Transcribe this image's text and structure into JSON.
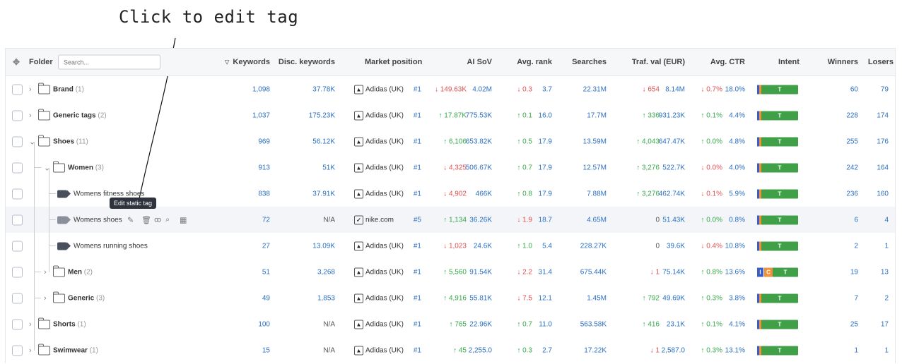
{
  "annotation": {
    "text": "Click to edit tag"
  },
  "header": {
    "sort_icon": "sort-asc-icon",
    "folder_label": "Folder",
    "search_placeholder": "Search...",
    "columns": [
      "Keywords",
      "Disc. keywords",
      "Market position",
      "AI SoV",
      "Avg. rank",
      "Searches",
      "Traf. val (EUR)",
      "Avg. CTR",
      "Intent",
      "Winners",
      "Losers"
    ]
  },
  "tooltip": {
    "text": "Edit static tag"
  },
  "colors": {
    "up": "#38a84c",
    "down": "#e05050",
    "link": "#2a6fc2",
    "intent_green": "#3fa048",
    "intent_blue": "#3a5cc7",
    "intent_orange": "#f0913a"
  },
  "rows": [
    {
      "name": "Brand",
      "count": "(1)",
      "keywords": "1,098",
      "disc": "37.78K",
      "brand": "Adidas (UK)",
      "pos": "#1",
      "sov_d": "149.63K",
      "sov_dir": "down",
      "sov": "4.02M",
      "rank_d": "0.3",
      "rank_dir": "down",
      "rank": "3.7",
      "searches": "22.31M",
      "tv_d": "654",
      "tv_dir": "down",
      "tv": "8.14M",
      "ctr_d": "0.7%",
      "ctr_dir": "down",
      "ctr": "18.0%",
      "intent": "T",
      "winners": "60",
      "losers": "79"
    },
    {
      "name": "Generic tags",
      "count": "(2)",
      "keywords": "1,037",
      "disc": "175.23K",
      "brand": "Adidas (UK)",
      "pos": "#1",
      "sov_d": "17.87K",
      "sov_dir": "up",
      "sov": "775.53K",
      "rank_d": "0.1",
      "rank_dir": "up",
      "rank": "16.0",
      "searches": "17.7M",
      "tv_d": "336",
      "tv_dir": "up",
      "tv": "931.23K",
      "ctr_d": "0.1%",
      "ctr_dir": "up",
      "ctr": "4.4%",
      "intent": "T",
      "winners": "228",
      "losers": "174"
    },
    {
      "name": "Shoes",
      "count": "(11)",
      "keywords": "969",
      "disc": "56.12K",
      "brand": "Adidas (UK)",
      "pos": "#1",
      "sov_d": "6,106",
      "sov_dir": "up",
      "sov": "653.82K",
      "rank_d": "0.5",
      "rank_dir": "up",
      "rank": "17.9",
      "searches": "13.59M",
      "tv_d": "4,043",
      "tv_dir": "up",
      "tv": "647.47K",
      "ctr_d": "0.0%",
      "ctr_dir": "up",
      "ctr": "4.8%",
      "intent": "T",
      "winners": "255",
      "losers": "176"
    },
    {
      "name": "Women",
      "count": "(3)",
      "keywords": "913",
      "disc": "51K",
      "brand": "Adidas (UK)",
      "pos": "#1",
      "sov_d": "4,325",
      "sov_dir": "down",
      "sov": "506.67K",
      "rank_d": "0.7",
      "rank_dir": "up",
      "rank": "17.9",
      "searches": "12.57M",
      "tv_d": "3,276",
      "tv_dir": "up",
      "tv": "522.7K",
      "ctr_d": "0.0%",
      "ctr_dir": "down",
      "ctr": "4.0%",
      "intent": "T",
      "winners": "242",
      "losers": "164"
    },
    {
      "name": "Womens fitness shoes",
      "count": "",
      "keywords": "838",
      "disc": "37.91K",
      "brand": "Adidas (UK)",
      "pos": "#1",
      "sov_d": "4,902",
      "sov_dir": "down",
      "sov": "466K",
      "rank_d": "0.8",
      "rank_dir": "up",
      "rank": "17.9",
      "searches": "7.88M",
      "tv_d": "3,276",
      "tv_dir": "up",
      "tv": "462.74K",
      "ctr_d": "0.1%",
      "ctr_dir": "down",
      "ctr": "5.9%",
      "intent": "T",
      "winners": "236",
      "losers": "160"
    },
    {
      "name": "Womens shoes",
      "count": "",
      "keywords": "72",
      "disc": "N/A",
      "brand": "nike.com",
      "pos": "#5",
      "sov_d": "1,134",
      "sov_dir": "up",
      "sov": "36.26K",
      "rank_d": "1.9",
      "rank_dir": "down",
      "rank": "18.7",
      "searches": "4.65M",
      "tv_d": "0",
      "tv_dir": "none",
      "tv": "51.43K",
      "ctr_d": "0.0%",
      "ctr_dir": "up",
      "ctr": "0.8%",
      "intent": "T",
      "winners": "6",
      "losers": "4"
    },
    {
      "name": "Womens running shoes",
      "count": "",
      "keywords": "27",
      "disc": "13.09K",
      "brand": "Adidas (UK)",
      "pos": "#1",
      "sov_d": "1,023",
      "sov_dir": "down",
      "sov": "24.6K",
      "rank_d": "1.0",
      "rank_dir": "up",
      "rank": "5.4",
      "searches": "228.27K",
      "tv_d": "0",
      "tv_dir": "none",
      "tv": "39.6K",
      "ctr_d": "0.4%",
      "ctr_dir": "down",
      "ctr": "10.8%",
      "intent": "T",
      "winners": "2",
      "losers": "1"
    },
    {
      "name": "Men",
      "count": "(2)",
      "keywords": "51",
      "disc": "3,268",
      "brand": "Adidas (UK)",
      "pos": "#1",
      "sov_d": "5,560",
      "sov_dir": "up",
      "sov": "91.54K",
      "rank_d": "2.2",
      "rank_dir": "down",
      "rank": "31.4",
      "searches": "675.44K",
      "tv_d": "1",
      "tv_dir": "down",
      "tv": "75.14K",
      "ctr_d": "0.8%",
      "ctr_dir": "up",
      "ctr": "13.6%",
      "intent": "T",
      "intent_i": "I",
      "intent_c": "C",
      "winners": "19",
      "losers": "13"
    },
    {
      "name": "Generic",
      "count": "(3)",
      "keywords": "49",
      "disc": "1,853",
      "brand": "Adidas (UK)",
      "pos": "#1",
      "sov_d": "4,916",
      "sov_dir": "up",
      "sov": "55.81K",
      "rank_d": "7.5",
      "rank_dir": "down",
      "rank": "12.1",
      "searches": "1.45M",
      "tv_d": "792",
      "tv_dir": "up",
      "tv": "49.69K",
      "ctr_d": "0.3%",
      "ctr_dir": "up",
      "ctr": "3.8%",
      "intent": "T",
      "winners": "7",
      "losers": "2"
    },
    {
      "name": "Shorts",
      "count": "(1)",
      "keywords": "100",
      "disc": "N/A",
      "brand": "Adidas (UK)",
      "pos": "#1",
      "sov_d": "765",
      "sov_dir": "up",
      "sov": "22.96K",
      "rank_d": "0.7",
      "rank_dir": "up",
      "rank": "11.0",
      "searches": "563.58K",
      "tv_d": "416",
      "tv_dir": "up",
      "tv": "23.1K",
      "ctr_d": "0.1%",
      "ctr_dir": "up",
      "ctr": "4.1%",
      "intent": "T",
      "winners": "25",
      "losers": "17"
    },
    {
      "name": "Swimwear",
      "count": "(1)",
      "keywords": "15",
      "disc": "N/A",
      "brand": "Adidas (UK)",
      "pos": "#1",
      "sov_d": "45",
      "sov_dir": "up",
      "sov": "2,255.0",
      "rank_d": "0.3",
      "rank_dir": "up",
      "rank": "2.7",
      "searches": "17.22K",
      "tv_d": "1",
      "tv_dir": "down",
      "tv": "2,587.0",
      "ctr_d": "0.3%",
      "ctr_dir": "up",
      "ctr": "13.1%",
      "intent": "T",
      "winners": "1",
      "losers": "1"
    }
  ]
}
